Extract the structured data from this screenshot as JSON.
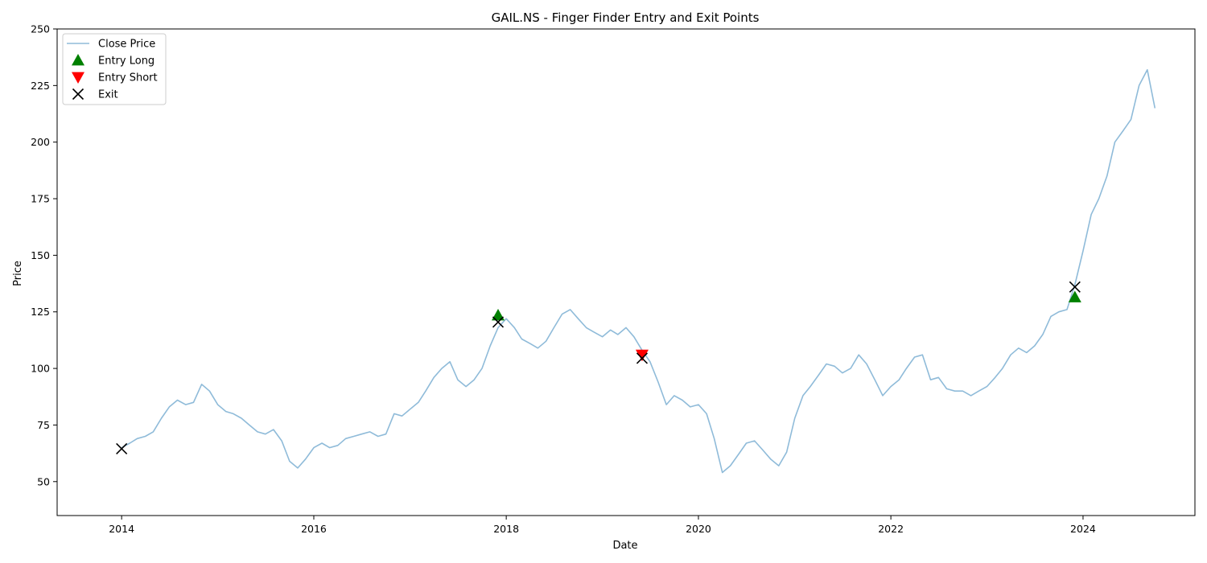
{
  "chart_data": {
    "type": "line",
    "title": "GAIL.NS - Finger Finder Entry and Exit Points",
    "xlabel": "Date",
    "ylabel": "Price",
    "x_type": "date",
    "xlim": [
      "2013-05-01",
      "2025-03-01"
    ],
    "ylim": [
      35,
      250
    ],
    "x_ticks": [
      "2014-01-01",
      "2016-01-01",
      "2018-01-01",
      "2020-01-01",
      "2022-01-01",
      "2024-01-01"
    ],
    "x_tick_labels": [
      "2014",
      "2016",
      "2018",
      "2020",
      "2022",
      "2024"
    ],
    "y_ticks": [
      50,
      75,
      100,
      125,
      150,
      175,
      200,
      225,
      250
    ],
    "y_tick_labels": [
      "50",
      "75",
      "100",
      "125",
      "150",
      "175",
      "200",
      "225",
      "250"
    ],
    "grid": false,
    "legend_position": "top-left",
    "colors": {
      "close_price": "#1f77b4",
      "entry_long": "#008000",
      "entry_short": "#ff0000",
      "exit": "#000000"
    },
    "series": [
      {
        "name": "Close Price",
        "kind": "line",
        "x": [
          "2014-01-01",
          "2014-02-01",
          "2014-03-01",
          "2014-04-01",
          "2014-05-01",
          "2014-06-01",
          "2014-07-01",
          "2014-08-01",
          "2014-09-01",
          "2014-10-01",
          "2014-11-01",
          "2014-12-01",
          "2015-01-01",
          "2015-02-01",
          "2015-03-01",
          "2015-04-01",
          "2015-05-01",
          "2015-06-01",
          "2015-07-01",
          "2015-08-01",
          "2015-09-01",
          "2015-10-01",
          "2015-11-01",
          "2015-12-01",
          "2016-01-01",
          "2016-02-01",
          "2016-03-01",
          "2016-04-01",
          "2016-05-01",
          "2016-06-01",
          "2016-07-01",
          "2016-08-01",
          "2016-09-01",
          "2016-10-01",
          "2016-11-01",
          "2016-12-01",
          "2017-01-01",
          "2017-02-01",
          "2017-03-01",
          "2017-04-01",
          "2017-05-01",
          "2017-06-01",
          "2017-07-01",
          "2017-08-01",
          "2017-09-01",
          "2017-10-01",
          "2017-11-01",
          "2017-12-01",
          "2018-01-01",
          "2018-02-01",
          "2018-03-01",
          "2018-04-01",
          "2018-05-01",
          "2018-06-01",
          "2018-07-01",
          "2018-08-01",
          "2018-09-01",
          "2018-10-01",
          "2018-11-01",
          "2018-12-01",
          "2019-01-01",
          "2019-02-01",
          "2019-03-01",
          "2019-04-01",
          "2019-05-01",
          "2019-06-01",
          "2019-07-01",
          "2019-08-01",
          "2019-09-01",
          "2019-10-01",
          "2019-11-01",
          "2019-12-01",
          "2020-01-01",
          "2020-02-01",
          "2020-03-01",
          "2020-04-01",
          "2020-05-01",
          "2020-06-01",
          "2020-07-01",
          "2020-08-01",
          "2020-09-01",
          "2020-10-01",
          "2020-11-01",
          "2020-12-01",
          "2021-01-01",
          "2021-02-01",
          "2021-03-01",
          "2021-04-01",
          "2021-05-01",
          "2021-06-01",
          "2021-07-01",
          "2021-08-01",
          "2021-09-01",
          "2021-10-01",
          "2021-11-01",
          "2021-12-01",
          "2022-01-01",
          "2022-02-01",
          "2022-03-01",
          "2022-04-01",
          "2022-05-01",
          "2022-06-01",
          "2022-07-01",
          "2022-08-01",
          "2022-09-01",
          "2022-10-01",
          "2022-11-01",
          "2022-12-01",
          "2023-01-01",
          "2023-02-01",
          "2023-03-01",
          "2023-04-01",
          "2023-05-01",
          "2023-06-01",
          "2023-07-01",
          "2023-08-01",
          "2023-09-01",
          "2023-10-01",
          "2023-11-01",
          "2023-12-01",
          "2024-01-01",
          "2024-02-01",
          "2024-03-01",
          "2024-04-01",
          "2024-05-01",
          "2024-06-01",
          "2024-07-01",
          "2024-08-01",
          "2024-09-01",
          "2024-09-30"
        ],
        "y": [
          65,
          67,
          69,
          70,
          72,
          78,
          83,
          86,
          84,
          85,
          93,
          90,
          84,
          81,
          80,
          78,
          75,
          72,
          71,
          73,
          68,
          59,
          56,
          60,
          65,
          67,
          65,
          66,
          69,
          70,
          71,
          72,
          70,
          71,
          80,
          79,
          82,
          85,
          90,
          96,
          100,
          103,
          95,
          92,
          95,
          100,
          110,
          118,
          122,
          118,
          113,
          111,
          109,
          112,
          118,
          124,
          126,
          122,
          118,
          116,
          114,
          117,
          115,
          118,
          114,
          108,
          103,
          94,
          84,
          88,
          86,
          83,
          84,
          80,
          69,
          54,
          57,
          62,
          67,
          68,
          64,
          60,
          57,
          63,
          78,
          88,
          92,
          97,
          102,
          101,
          98,
          100,
          106,
          102,
          95,
          88,
          92,
          95,
          100,
          105,
          106,
          95,
          96,
          91,
          90,
          90,
          88,
          90,
          92,
          96,
          100,
          106,
          109,
          107,
          110,
          115,
          123,
          125,
          126,
          137,
          152,
          168,
          175,
          185,
          200,
          205,
          210,
          225,
          232,
          215
        ]
      },
      {
        "name": "Entry Long",
        "kind": "marker-up",
        "x": [
          "2017-12-01",
          "2023-12-01"
        ],
        "y": [
          123.5,
          131.5
        ]
      },
      {
        "name": "Entry Short",
        "kind": "marker-down",
        "x": [
          "2019-06-01"
        ],
        "y": [
          106
        ]
      },
      {
        "name": "Exit",
        "kind": "marker-x",
        "x": [
          "2014-01-01",
          "2017-12-01",
          "2019-06-01",
          "2023-12-01"
        ],
        "y": [
          64.5,
          120.5,
          104.5,
          136
        ]
      }
    ]
  }
}
